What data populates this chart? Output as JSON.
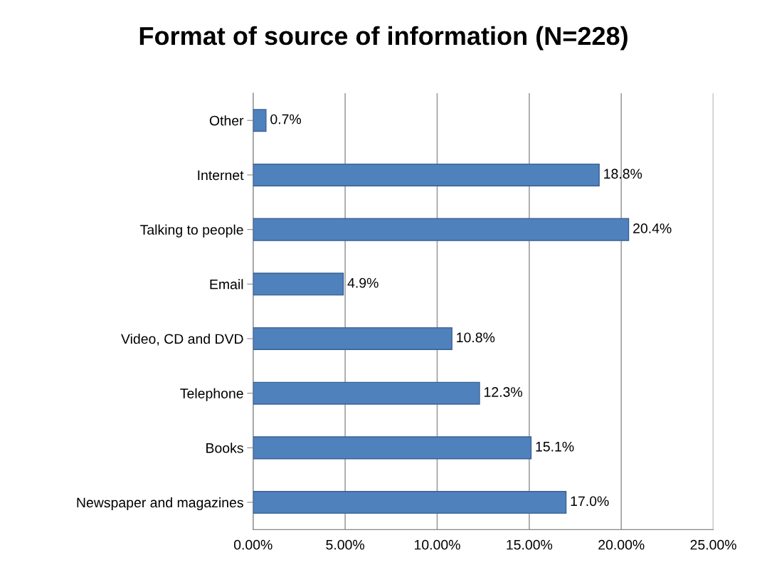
{
  "chart_data": {
    "type": "bar",
    "orientation": "horizontal",
    "title": "Format of source of information (N=228)",
    "categories": [
      "Other",
      "Internet",
      "Talking to people",
      "Email",
      "Video, CD and DVD",
      "Telephone",
      "Books",
      "Newspaper and magazines"
    ],
    "values": [
      0.7,
      18.8,
      20.4,
      4.9,
      10.8,
      12.3,
      15.1,
      17.0
    ],
    "value_labels": [
      "0.7%",
      "18.8%",
      "20.4%",
      "4.9%",
      "10.8%",
      "12.3%",
      "15.1%",
      "17.0%"
    ],
    "color": "#4f81bd",
    "xlim": [
      0,
      25
    ],
    "xticks": [
      {
        "value": 0,
        "label": "0.00%"
      },
      {
        "value": 5,
        "label": "5.00%"
      },
      {
        "value": 10,
        "label": "10.00%"
      },
      {
        "value": 15,
        "label": "15.00%"
      },
      {
        "value": 20,
        "label": "20.00%"
      },
      {
        "value": 25,
        "label": "25.00%"
      }
    ],
    "grid": "x",
    "legend": false
  }
}
